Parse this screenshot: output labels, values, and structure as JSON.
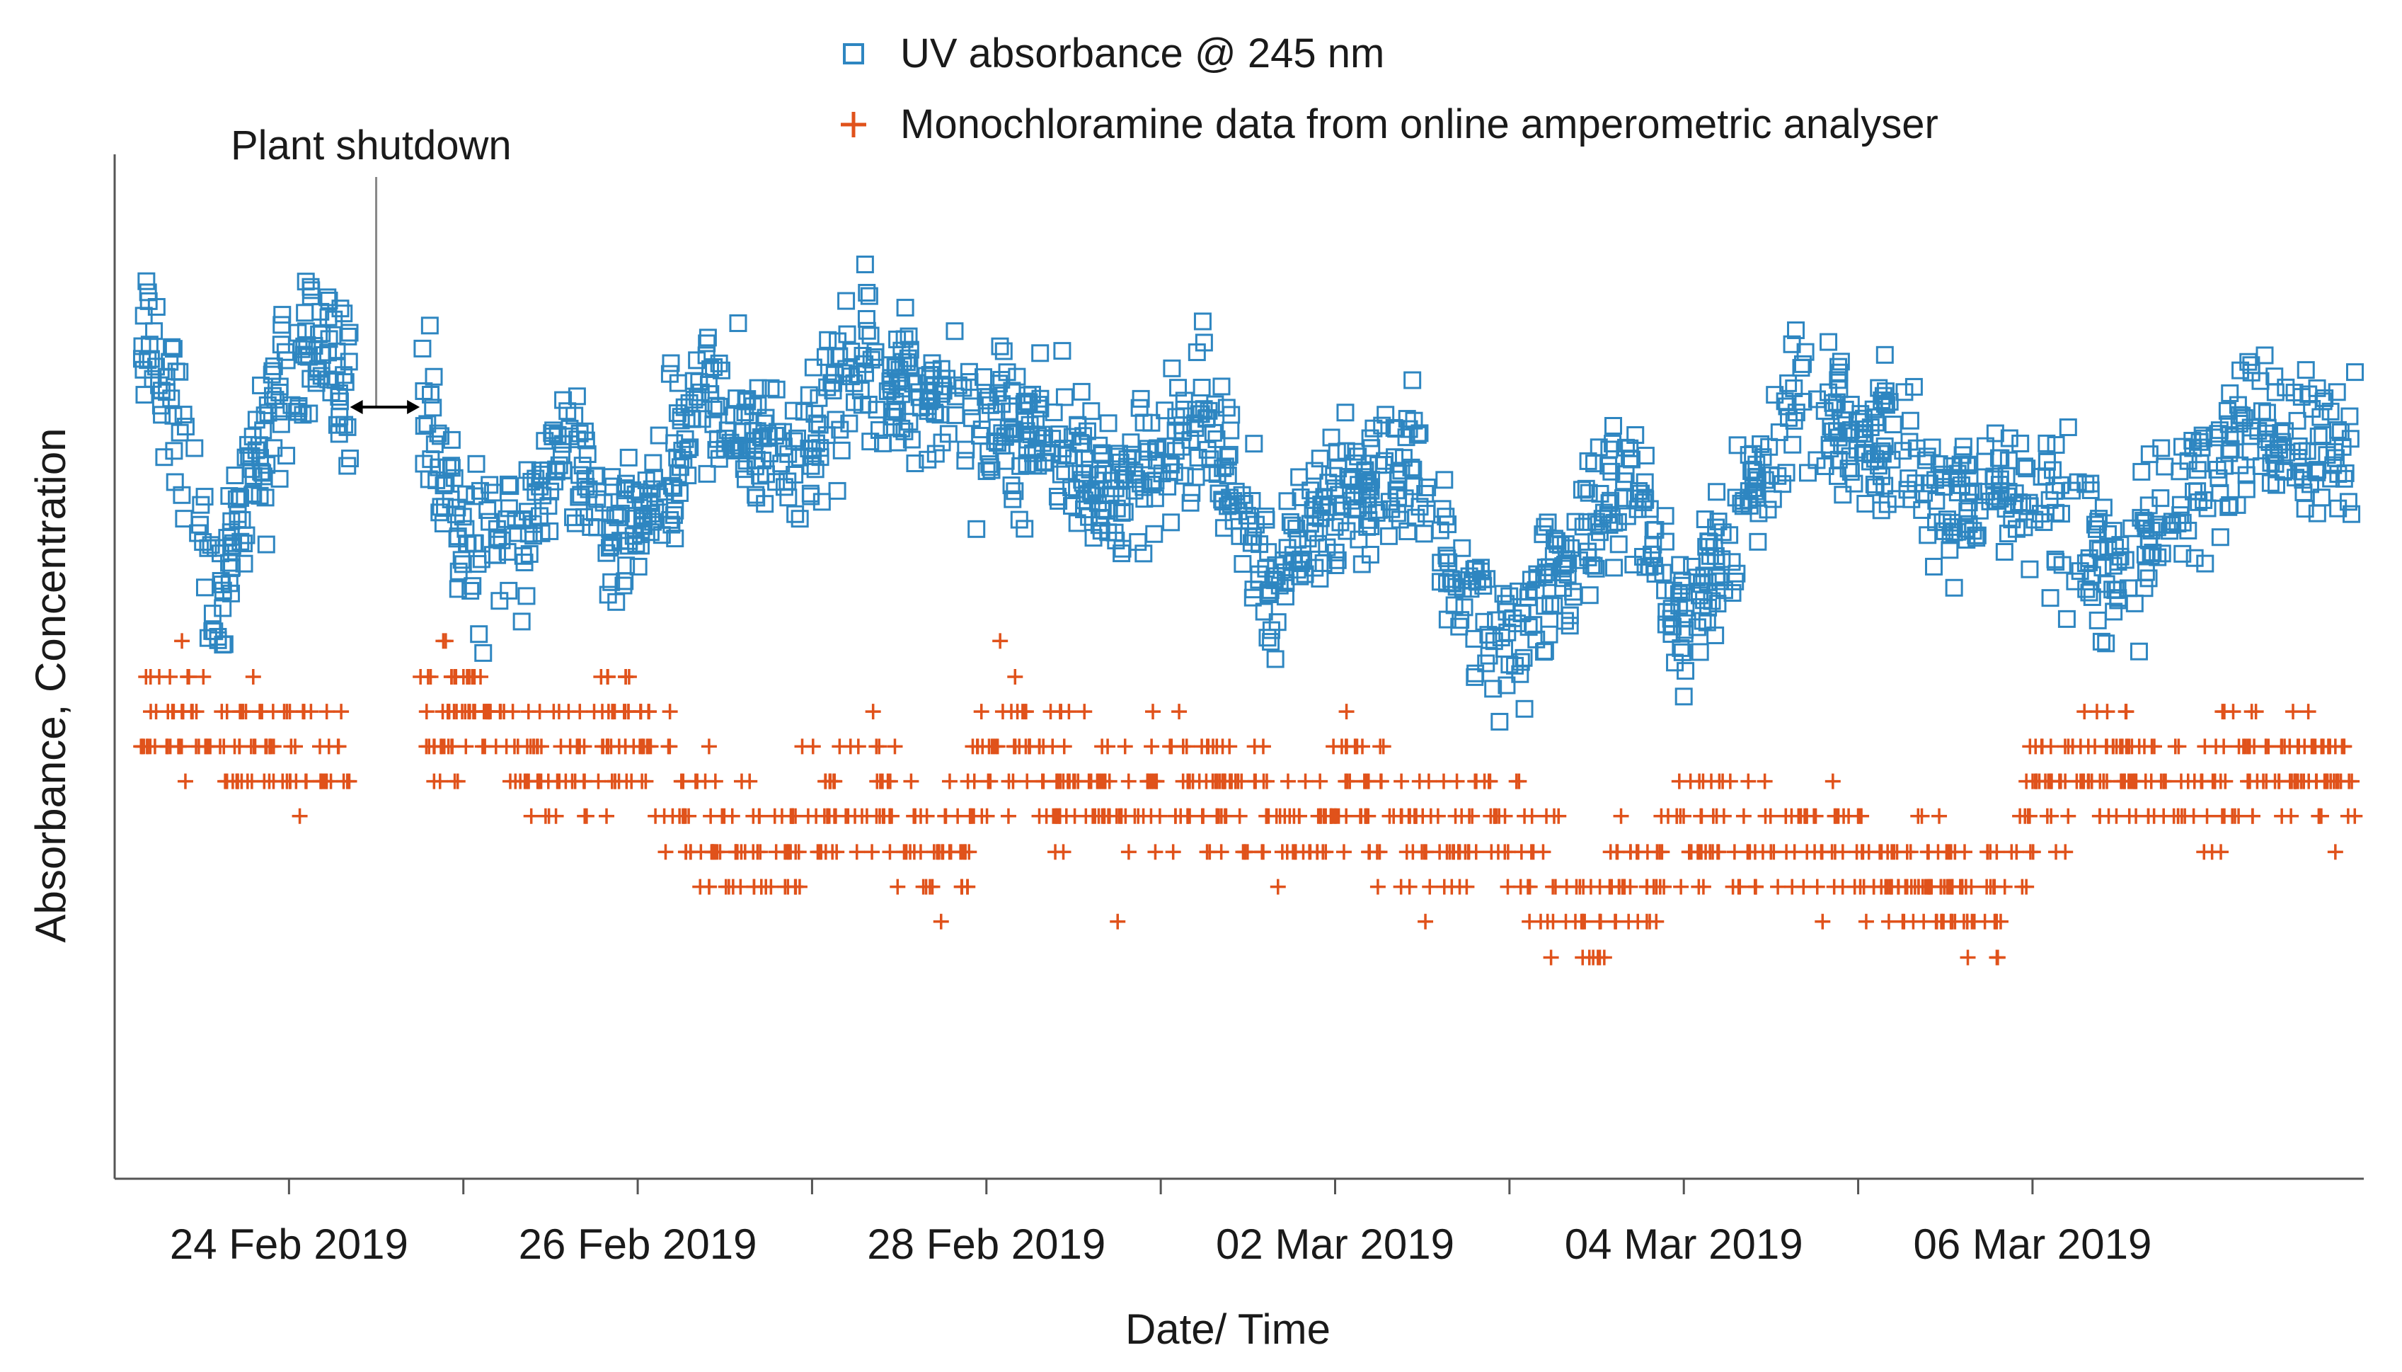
{
  "chart_data": {
    "type": "scatter",
    "title": "",
    "xlabel": "Date/ Time",
    "ylabel": "Absorbance, Concentration",
    "x_unit": "days since 23 Feb 2019 12:00",
    "xlim": [
      0,
      12.9
    ],
    "ylim": [
      0,
      100
    ],
    "grid": false,
    "legend_position": "top",
    "x_major_ticks": [
      {
        "x": 1,
        "label": "24 Feb 2019"
      },
      {
        "x": 3,
        "label": "26 Feb 2019"
      },
      {
        "x": 5,
        "label": "28 Feb 2019"
      },
      {
        "x": 7,
        "label": "02 Mar 2019"
      },
      {
        "x": 9,
        "label": "04 Mar 2019"
      },
      {
        "x": 11,
        "label": "06 Mar 2019"
      }
    ],
    "x_minor_ticks": [
      2,
      4,
      6,
      8,
      10
    ],
    "annotation": {
      "text": "Plant shutdown",
      "x_line": 1.5,
      "span_start": 1.35,
      "span_end": 1.75
    },
    "colors": {
      "uv": "#2e86c1",
      "mono": "#e0521b",
      "axis": "#555555"
    },
    "series": [
      {
        "name": "UV absorbance @ 245 nm",
        "marker": "square",
        "density": 14,
        "gaps": [
          [
            1.35,
            1.75
          ]
        ],
        "trend": [
          {
            "x": 0.15,
            "y": 83
          },
          {
            "x": 0.35,
            "y": 74
          },
          {
            "x": 0.6,
            "y": 57
          },
          {
            "x": 0.75,
            "y": 66
          },
          {
            "x": 0.95,
            "y": 77
          },
          {
            "x": 1.1,
            "y": 82
          },
          {
            "x": 1.25,
            "y": 80
          },
          {
            "x": 1.35,
            "y": 76
          },
          {
            "x": 1.75,
            "y": 76
          },
          {
            "x": 1.95,
            "y": 66
          },
          {
            "x": 2.05,
            "y": 62
          },
          {
            "x": 2.35,
            "y": 61
          },
          {
            "x": 2.55,
            "y": 72
          },
          {
            "x": 2.7,
            "y": 69
          },
          {
            "x": 2.85,
            "y": 61
          },
          {
            "x": 3.05,
            "y": 65
          },
          {
            "x": 3.4,
            "y": 76
          },
          {
            "x": 3.75,
            "y": 71
          },
          {
            "x": 3.95,
            "y": 69
          },
          {
            "x": 4.25,
            "y": 80
          },
          {
            "x": 4.5,
            "y": 78
          },
          {
            "x": 4.75,
            "y": 75
          },
          {
            "x": 5.05,
            "y": 72
          },
          {
            "x": 5.35,
            "y": 74
          },
          {
            "x": 5.7,
            "y": 65
          },
          {
            "x": 6.0,
            "y": 71
          },
          {
            "x": 6.25,
            "y": 75
          },
          {
            "x": 6.5,
            "y": 66
          },
          {
            "x": 6.65,
            "y": 56
          },
          {
            "x": 6.85,
            "y": 64
          },
          {
            "x": 7.15,
            "y": 67
          },
          {
            "x": 7.45,
            "y": 69
          },
          {
            "x": 7.6,
            "y": 60
          },
          {
            "x": 7.8,
            "y": 57
          },
          {
            "x": 8.0,
            "y": 52
          },
          {
            "x": 8.25,
            "y": 58
          },
          {
            "x": 8.55,
            "y": 65
          },
          {
            "x": 8.75,
            "y": 66
          },
          {
            "x": 8.95,
            "y": 54
          },
          {
            "x": 9.15,
            "y": 58
          },
          {
            "x": 9.45,
            "y": 69
          },
          {
            "x": 9.6,
            "y": 74
          },
          {
            "x": 9.7,
            "y": 79
          },
          {
            "x": 9.85,
            "y": 74
          },
          {
            "x": 10.05,
            "y": 72
          },
          {
            "x": 10.25,
            "y": 70
          },
          {
            "x": 10.45,
            "y": 64
          },
          {
            "x": 10.75,
            "y": 69
          },
          {
            "x": 11.05,
            "y": 66
          },
          {
            "x": 11.25,
            "y": 64
          },
          {
            "x": 11.5,
            "y": 58
          },
          {
            "x": 11.75,
            "y": 65
          },
          {
            "x": 12.0,
            "y": 68
          },
          {
            "x": 12.3,
            "y": 74
          },
          {
            "x": 12.6,
            "y": 72
          },
          {
            "x": 12.85,
            "y": 70
          }
        ]
      },
      {
        "name": "Monochloramine data from online amperometric analyser",
        "marker": "plus",
        "density": 10,
        "gaps": [
          [
            1.35,
            1.75
          ]
        ],
        "levels": [
          52.5,
          49.0,
          45.6,
          42.2,
          38.8,
          35.4,
          31.9,
          28.5,
          25.1,
          21.6,
          18.2,
          14.8,
          11.4
        ],
        "trend": [
          {
            "x": 0.15,
            "y": 44
          },
          {
            "x": 0.35,
            "y": 47
          },
          {
            "x": 0.6,
            "y": 42
          },
          {
            "x": 0.9,
            "y": 43
          },
          {
            "x": 1.1,
            "y": 41
          },
          {
            "x": 1.35,
            "y": 41
          },
          {
            "x": 1.75,
            "y": 45
          },
          {
            "x": 2.05,
            "y": 46
          },
          {
            "x": 2.35,
            "y": 41
          },
          {
            "x": 2.6,
            "y": 38
          },
          {
            "x": 2.9,
            "y": 45
          },
          {
            "x": 3.2,
            "y": 39
          },
          {
            "x": 3.5,
            "y": 32
          },
          {
            "x": 3.8,
            "y": 31
          },
          {
            "x": 4.05,
            "y": 36
          },
          {
            "x": 4.4,
            "y": 38
          },
          {
            "x": 4.65,
            "y": 30
          },
          {
            "x": 4.85,
            "y": 33
          },
          {
            "x": 5.1,
            "y": 45
          },
          {
            "x": 5.4,
            "y": 40
          },
          {
            "x": 5.75,
            "y": 34
          },
          {
            "x": 6.0,
            "y": 38
          },
          {
            "x": 6.3,
            "y": 38
          },
          {
            "x": 6.6,
            "y": 35
          },
          {
            "x": 6.9,
            "y": 33
          },
          {
            "x": 7.1,
            "y": 40
          },
          {
            "x": 7.35,
            "y": 32
          },
          {
            "x": 7.6,
            "y": 33
          },
          {
            "x": 7.9,
            "y": 36
          },
          {
            "x": 8.2,
            "y": 30
          },
          {
            "x": 8.45,
            "y": 25
          },
          {
            "x": 8.75,
            "y": 29
          },
          {
            "x": 8.95,
            "y": 33
          },
          {
            "x": 9.2,
            "y": 34
          },
          {
            "x": 9.45,
            "y": 32
          },
          {
            "x": 9.7,
            "y": 34
          },
          {
            "x": 10.0,
            "y": 31
          },
          {
            "x": 10.25,
            "y": 29
          },
          {
            "x": 10.55,
            "y": 28
          },
          {
            "x": 10.85,
            "y": 28
          },
          {
            "x": 11.05,
            "y": 39
          },
          {
            "x": 11.3,
            "y": 41
          },
          {
            "x": 11.6,
            "y": 40
          },
          {
            "x": 11.9,
            "y": 36
          },
          {
            "x": 12.2,
            "y": 40
          },
          {
            "x": 12.5,
            "y": 41
          },
          {
            "x": 12.85,
            "y": 39
          }
        ]
      }
    ]
  }
}
